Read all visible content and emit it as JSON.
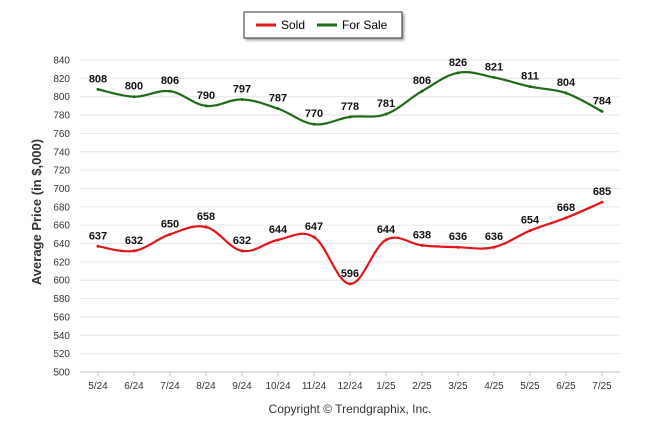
{
  "chart_data": {
    "type": "line",
    "categories": [
      "5/24",
      "6/24",
      "7/24",
      "8/24",
      "9/24",
      "10/24",
      "11/24",
      "12/24",
      "1/25",
      "2/25",
      "3/25",
      "4/25",
      "5/25",
      "6/25",
      "7/25"
    ],
    "series": [
      {
        "name": "Sold",
        "color": "#e0161b",
        "values": [
          637,
          632,
          650,
          658,
          632,
          644,
          647,
          596,
          644,
          638,
          636,
          636,
          654,
          668,
          685
        ],
        "labels": [
          "637",
          "632",
          "650",
          "658",
          "632",
          "644",
          "647",
          "596",
          "644",
          "638",
          "636",
          "636",
          "654",
          "668",
          "685"
        ]
      },
      {
        "name": "For Sale",
        "color": "#1f6b17",
        "values": [
          808,
          800,
          806,
          790,
          797,
          787,
          770,
          778,
          781,
          806,
          826,
          821,
          811,
          804,
          784
        ],
        "labels": [
          "808",
          "800",
          "806",
          "790",
          "797",
          "787",
          "770",
          "778",
          "781",
          "806",
          "826",
          "821",
          "811",
          "804",
          "784"
        ]
      }
    ],
    "ylabel": "Average Price (in $,000)",
    "ylim": [
      500,
      840
    ],
    "yticks": [
      "500",
      "520",
      "540",
      "560",
      "580",
      "600",
      "620",
      "640",
      "660",
      "680",
      "700",
      "720",
      "740",
      "760",
      "780",
      "800",
      "820",
      "840"
    ],
    "grid": true,
    "legend_position": "top-center"
  },
  "footer": {
    "copyright": "Copyright © Trendgraphix, Inc."
  }
}
